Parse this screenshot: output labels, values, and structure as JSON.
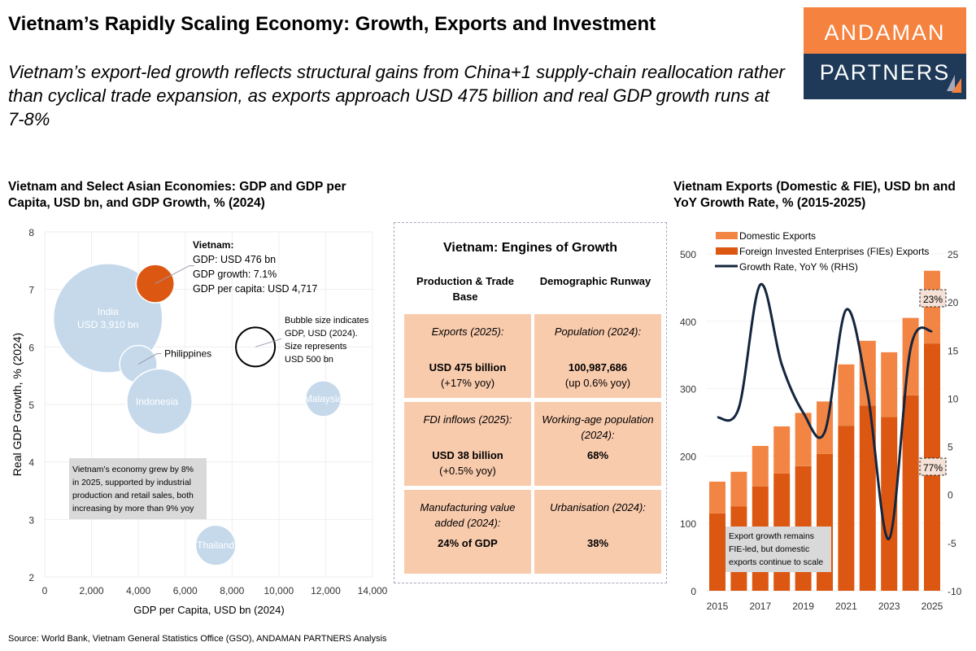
{
  "header": {
    "title": "Vietnam’s Rapidly Scaling Economy: Growth, Exports and Investment",
    "subtitle": "Vietnam’s export-led growth reflects structural gains from China+1 supply-chain reallocation rather than cyclical trade expansion, as exports approach USD 475 billion and real GDP growth runs at 7-8%",
    "logo": {
      "line1": "ANDAMAN",
      "line2": "PARTNERS",
      "colors": {
        "top": "#f5823f",
        "bottom": "#1e3a58"
      }
    }
  },
  "engines": {
    "title": "Vietnam: Engines of Growth",
    "columns": [
      "Production & Trade Base",
      "Demographic Runway"
    ],
    "cells": [
      {
        "label": "Exports (2025):",
        "value": "USD 475 billion",
        "note": "(+17% yoy)"
      },
      {
        "label": "Population (2024):",
        "value": "100,987,686",
        "note": "(up 0.6% yoy)"
      },
      {
        "label": "FDI inflows (2025):",
        "value": "USD 38 billion",
        "note": "(+0.5% yoy)"
      },
      {
        "label": "Working-age population (2024):",
        "value": "68%",
        "note": ""
      },
      {
        "label": "Manufacturing value added (2024):",
        "value": "24% of GDP",
        "note": ""
      },
      {
        "label": "Urbanisation (2024):",
        "value": "38%",
        "note": ""
      }
    ]
  },
  "chart_data": [
    {
      "type": "scatter",
      "title": "Vietnam and Select Asian Economies: GDP and GDP per Capita, USD bn, and GDP Growth, % (2024)",
      "xlabel": "GDP per Capita, USD bn (2024)",
      "ylabel": "Real GDP Growth, % (2024)",
      "xlim": [
        0,
        14000
      ],
      "ylim": [
        2,
        8
      ],
      "xticks": [
        "0",
        "2,000",
        "4,000",
        "6,000",
        "8,000",
        "10,000",
        "12,000",
        "14,000"
      ],
      "yticks": [
        "2",
        "3",
        "4",
        "5",
        "6",
        "7",
        "8"
      ],
      "grid": true,
      "colors": {
        "bubble": "#c5d9eb",
        "vietnam": "#dc5711"
      },
      "points": [
        {
          "name": "India",
          "label": "India",
          "sublabel": "USD 3,910 bn",
          "x": 2700,
          "y": 6.5,
          "gdp": 3910
        },
        {
          "name": "Vietnam",
          "x": 4717,
          "y": 7.1,
          "gdp": 476
        },
        {
          "name": "Philippines",
          "label": "Philippines",
          "x": 4000,
          "y": 5.7,
          "gdp": 460
        },
        {
          "name": "Indonesia",
          "label": "Indonesia",
          "x": 4900,
          "y": 5.05,
          "gdp": 1400
        },
        {
          "name": "Malaysia",
          "label": "Malaysia",
          "x": 11900,
          "y": 5.1,
          "gdp": 420
        },
        {
          "name": "Thailand",
          "label": "Thailand",
          "x": 7300,
          "y": 2.55,
          "gdp": 530
        }
      ],
      "reference_bubble": {
        "x": 9000,
        "y": 6.0,
        "gdp": 500,
        "text": [
          "Bubble size indicates",
          "GDP, USD (2024).",
          "Size represents",
          "USD 500 bn"
        ]
      },
      "vietnam_callout": {
        "heading": "Vietnam:",
        "lines": [
          "GDP: USD 476 bn",
          "GDP growth: 7.1%",
          "GDP per capita: USD 4,717"
        ]
      },
      "annotation": [
        "Vietnam’s economy grew by 8%",
        "in 2025, supported by industrial",
        "production and retail sales, both",
        "increasing by more than 9% yoy"
      ]
    },
    {
      "type": "bar",
      "title": "Vietnam Exports (Domestic & FIE), USD bn and YoY Growth Rate, % (2015-2025)",
      "categories": [
        "2015",
        "2016",
        "2017",
        "2018",
        "2019",
        "2020",
        "2021",
        "2022",
        "2023",
        "2024",
        "2025"
      ],
      "xticks": [
        "2015",
        "2017",
        "2019",
        "2021",
        "2023",
        "2025"
      ],
      "ylim": [
        0,
        500
      ],
      "yticks": [
        "0",
        "100",
        "200",
        "300",
        "400",
        "500"
      ],
      "y2lim": [
        -10,
        25
      ],
      "y2ticks": [
        "-10",
        "-5",
        "0",
        "5",
        "10",
        "15",
        "20",
        "25"
      ],
      "series": [
        {
          "name": "Domestic Exports",
          "color": "#f28544",
          "values": [
            47,
            51.6,
            60,
            70,
            79,
            78,
            91,
            96,
            96,
            115,
            108
          ]
        },
        {
          "name": "Foreign Invested Enterprises (FIEs) Exports",
          "color": "#dc5711",
          "values": [
            115,
            125,
            155,
            174,
            185,
            203,
            245,
            275,
            258,
            290,
            367
          ]
        },
        {
          "name": "Growth Rate, YoY % (RHS)",
          "color": "#14253d",
          "type": "line",
          "axis": "right",
          "values": [
            8,
            9,
            21.8,
            13.5,
            8.5,
            6.5,
            19.2,
            10.5,
            -4.6,
            15.2,
            17
          ]
        }
      ],
      "share_labels": {
        "domestic": "23%",
        "fie": "77%"
      },
      "annotation": [
        "Export growth remains",
        "FIE-led, but domestic",
        "exports continue to scale"
      ]
    }
  ],
  "footer": {
    "source": "Source: World Bank, Vietnam General Statistics Office (GSO), ANDAMAN PARTNERS Analysis"
  }
}
